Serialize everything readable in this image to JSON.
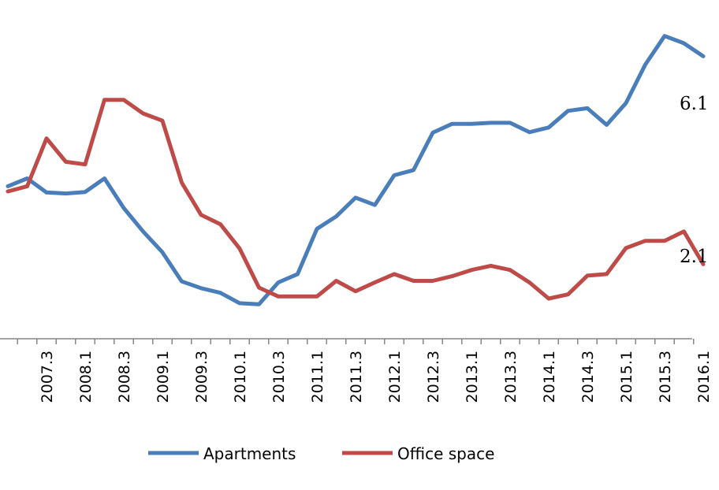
{
  "chart_data": {
    "type": "line",
    "x": [
      "2007.1",
      "2007.2",
      "2007.3",
      "2007.4",
      "2008.1",
      "2008.2",
      "2008.3",
      "2008.4",
      "2009.1",
      "2009.2",
      "2009.3",
      "2009.4",
      "2010.1",
      "2010.2",
      "2010.3",
      "2010.4",
      "2011.1",
      "2011.2",
      "2011.3",
      "2011.4",
      "2012.1",
      "2012.2",
      "2012.3",
      "2012.4",
      "2013.1",
      "2013.2",
      "2013.3",
      "2013.4",
      "2014.1",
      "2014.2",
      "2014.3",
      "2014.4",
      "2015.1",
      "2015.2",
      "2015.3",
      "2015.4",
      "2016.1"
    ],
    "tick_labels": [
      "2007.3",
      "2008.1",
      "2008.3",
      "2009.1",
      "2009.3",
      "2010.1",
      "2010.3",
      "2011.1",
      "2011.3",
      "2012.1",
      "2012.3",
      "2013.1",
      "2013.3",
      "2014.1",
      "2014.3",
      "2015.1",
      "2015.3",
      "2016.1"
    ],
    "series": [
      {
        "name": "Apartments",
        "color": "#4a7ebb",
        "values": [
          3.6,
          3.75,
          3.48,
          3.46,
          3.49,
          3.75,
          3.18,
          2.73,
          2.33,
          1.77,
          1.64,
          1.55,
          1.35,
          1.33,
          1.75,
          1.91,
          2.78,
          3.02,
          3.38,
          3.24,
          3.81,
          3.91,
          4.63,
          4.8,
          4.8,
          4.82,
          4.82,
          4.64,
          4.73,
          5.05,
          5.1,
          4.78,
          5.2,
          5.94,
          6.49,
          6.35,
          6.1
        ]
      },
      {
        "name": "Office space",
        "color": "#be4b48",
        "values": [
          3.5,
          3.6,
          4.52,
          4.07,
          4.02,
          5.26,
          5.26,
          5.0,
          4.86,
          3.67,
          3.05,
          2.87,
          2.4,
          1.65,
          1.48,
          1.48,
          1.48,
          1.78,
          1.58,
          1.75,
          1.91,
          1.78,
          1.78,
          1.87,
          1.99,
          2.07,
          1.99,
          1.75,
          1.44,
          1.52,
          1.88,
          1.91,
          2.41,
          2.55,
          2.55,
          2.73,
          2.1
        ]
      }
    ],
    "end_labels": [
      "6.1",
      "2.1"
    ],
    "legend_position": "bottom",
    "grid": false
  }
}
